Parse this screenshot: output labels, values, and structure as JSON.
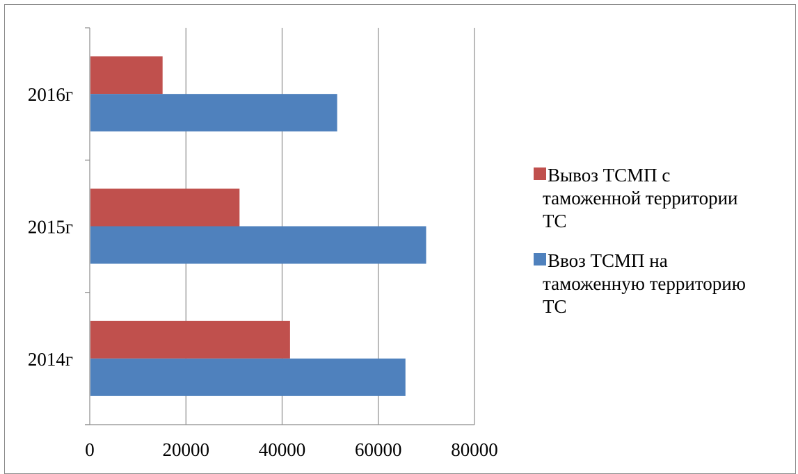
{
  "chart_data": {
    "type": "bar",
    "orientation": "horizontal",
    "categories": [
      "2014г",
      "2015г",
      "2016г"
    ],
    "series": [
      {
        "name": "Вывоз ТСМП с таможенной территории ТС",
        "name_lines": [
          "Вывоз ТСМП с",
          "таможенной территории",
          "ТС"
        ],
        "color": "#c0504d",
        "values": [
          41500,
          31000,
          15000
        ]
      },
      {
        "name": "Ввоз ТСМП на таможенную территорию ТС",
        "name_lines": [
          "Ввоз ТСМП на",
          "таможенную территорию",
          "ТС"
        ],
        "color": "#4f81bd",
        "values": [
          65500,
          69800,
          51300
        ]
      }
    ],
    "xlim": [
      0,
      80000
    ],
    "x_ticks": [
      "0",
      "20000",
      "40000",
      "60000",
      "80000"
    ],
    "grid": "vertical",
    "legend_position": "right"
  }
}
